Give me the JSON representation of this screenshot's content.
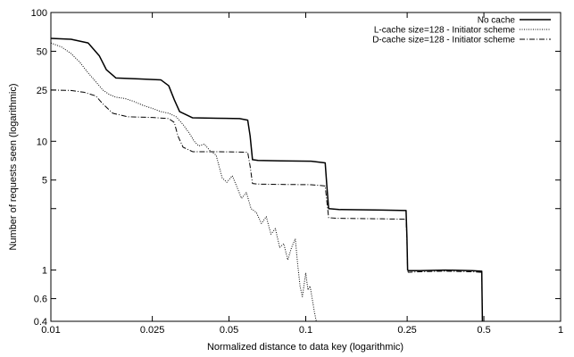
{
  "chart_data": {
    "type": "line",
    "title": "",
    "xlabel": "Normalized distance to data key (logarithmic)",
    "ylabel": "Number of requests seen (logarithmic)",
    "x_scale": "log",
    "y_scale": "log",
    "xlim": [
      0.01,
      1
    ],
    "ylim": [
      0.4,
      100
    ],
    "x_ticks": [
      0.01,
      0.025,
      0.05,
      0.1,
      0.25,
      0.5,
      1
    ],
    "x_tick_labels": [
      "0.01",
      "0.025",
      "0.05",
      "0.1",
      "0.25",
      "0.5",
      "1"
    ],
    "y_ticks": [
      0.4,
      0.6,
      1,
      3,
      5,
      10,
      25,
      50,
      100
    ],
    "y_tick_labels": [
      "0.4",
      "0.6",
      "1",
      "",
      "5",
      "10",
      "25",
      "50",
      "100"
    ],
    "grid": false,
    "legend_position": "top-right",
    "series": [
      {
        "name": "No cache",
        "style": "solid",
        "x": [
          0.01,
          0.012,
          0.014,
          0.0155,
          0.0165,
          0.018,
          0.022,
          0.027,
          0.029,
          0.0305,
          0.032,
          0.036,
          0.045,
          0.055,
          0.0592,
          0.0605,
          0.0618,
          0.065,
          0.08,
          0.105,
          0.1192,
          0.121,
          0.123,
          0.135,
          0.2,
          0.2475,
          0.2495,
          0.251,
          0.253,
          0.28,
          0.35,
          0.45,
          0.4905,
          0.492,
          0.4935
        ],
        "y": [
          63,
          62,
          58,
          46,
          36,
          31,
          30.5,
          30,
          27,
          21,
          17,
          15.2,
          15.1,
          15,
          14.6,
          11,
          7.2,
          7.1,
          7.05,
          7,
          6.8,
          4.5,
          3,
          2.95,
          2.92,
          2.9,
          1.8,
          1.0,
          0.99,
          0.99,
          1.0,
          0.99,
          0.98,
          0.6,
          0.4
        ]
      },
      {
        "name": "L-cache size=128 - Initiator scheme",
        "style": "dotted",
        "x": [
          0.01,
          0.011,
          0.012,
          0.013,
          0.014,
          0.015,
          0.016,
          0.017,
          0.018,
          0.0195,
          0.021,
          0.023,
          0.025,
          0.027,
          0.029,
          0.031,
          0.033,
          0.035,
          0.0365,
          0.038,
          0.04,
          0.042,
          0.0445,
          0.047,
          0.049,
          0.0515,
          0.054,
          0.056,
          0.0585,
          0.061,
          0.064,
          0.067,
          0.07,
          0.073,
          0.076,
          0.079,
          0.082,
          0.085,
          0.088,
          0.091,
          0.093,
          0.095,
          0.097,
          0.1,
          0.102,
          0.104,
          0.106,
          0.108,
          0.11
        ],
        "y": [
          58,
          54,
          48,
          41,
          34,
          29,
          25,
          23,
          22,
          21.5,
          20.5,
          19,
          18,
          17,
          16.5,
          15.5,
          13.5,
          11.5,
          10,
          9.2,
          9.5,
          8.5,
          7.8,
          5.2,
          4.8,
          5.4,
          4.3,
          3.6,
          4.0,
          3.0,
          2.8,
          2.3,
          2.6,
          1.9,
          2.1,
          1.5,
          1.6,
          1.2,
          1.5,
          1.75,
          1.1,
          0.75,
          0.62,
          0.95,
          0.7,
          0.75,
          0.6,
          0.48,
          0.4
        ]
      },
      {
        "name": "D-cache size=128 - Initiator scheme",
        "style": "dashdot",
        "x": [
          0.01,
          0.012,
          0.0135,
          0.015,
          0.016,
          0.0175,
          0.02,
          0.025,
          0.029,
          0.0305,
          0.0315,
          0.033,
          0.036,
          0.045,
          0.055,
          0.0592,
          0.0605,
          0.0618,
          0.065,
          0.08,
          0.105,
          0.1192,
          0.121,
          0.123,
          0.135,
          0.2,
          0.2475,
          0.2495,
          0.251,
          0.253,
          0.28,
          0.35,
          0.45,
          0.4905,
          0.492,
          0.4935
        ],
        "y": [
          25,
          24.8,
          24,
          22.5,
          19.5,
          16.5,
          15.5,
          15.3,
          15,
          14,
          11,
          9,
          8.3,
          8.3,
          8.25,
          8.2,
          6.4,
          4.7,
          4.65,
          4.62,
          4.6,
          4.5,
          3.4,
          2.55,
          2.52,
          2.5,
          2.48,
          1.7,
          0.98,
          0.96,
          0.97,
          0.98,
          0.97,
          0.96,
          0.6,
          0.4
        ]
      }
    ]
  }
}
